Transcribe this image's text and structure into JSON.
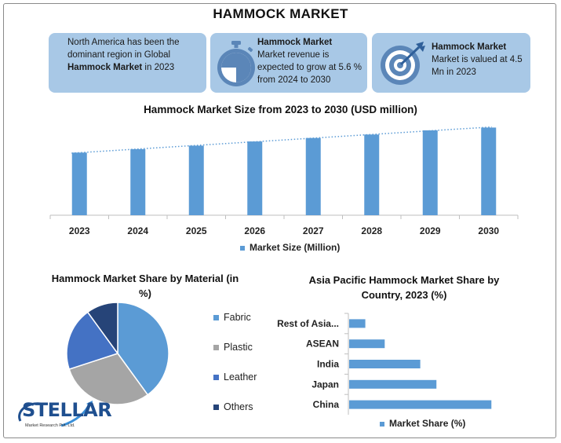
{
  "title": "HAMMOCK MARKET",
  "cards": [
    {
      "text_pre": "North America has been the dominant region in Global ",
      "text_bold": "Hammock Market",
      "text_post": " in 2023",
      "icon": "none"
    },
    {
      "heading": "Hammock Market",
      "text": "Market revenue is expected to grow at 5.6 % from 2024 to 2030",
      "icon": "stopwatch-icon"
    },
    {
      "heading": "Hammock Market",
      "text": "Market is valued at 4.5 Mn in 2023",
      "icon": "target-icon"
    }
  ],
  "colors": {
    "bar": "#5b9bd5",
    "card": "#a8c8e6",
    "fabric": "#5b9bd5",
    "plastic": "#a5a5a5",
    "leather": "#4472c4",
    "others": "#264478"
  },
  "logo": {
    "name": "STELLAR",
    "sub": "Market Research Pvt. Ltd."
  },
  "chart_data": [
    {
      "type": "bar",
      "title": "Hammock Market Size from 2023 to 2030 (USD million)",
      "categories": [
        "2023",
        "2024",
        "2025",
        "2026",
        "2027",
        "2028",
        "2029",
        "2030"
      ],
      "series": [
        {
          "name": "Market Size (Million)",
          "values": [
            4.5,
            4.75,
            5.0,
            5.3,
            5.55,
            5.8,
            6.1,
            6.3
          ]
        }
      ],
      "trendline": "dotted linear",
      "ylim": [
        0,
        7
      ],
      "grid": false,
      "legend": "bottom"
    },
    {
      "type": "pie",
      "title": "Hammock Market Share by Material (in %)",
      "categories": [
        "Fabric",
        "Plastic",
        "Leather",
        "Others"
      ],
      "values": [
        40,
        30,
        20,
        10
      ],
      "legend": "right"
    },
    {
      "type": "bar",
      "orientation": "horizontal",
      "title": "Asia Pacific Hammock Market Share by Country, 2023 (%)",
      "categories": [
        "Rest of Asia...",
        "ASEAN",
        "India",
        "Japan",
        "China"
      ],
      "series": [
        {
          "name": "Market Share (%)",
          "values": [
            5,
            11,
            22,
            27,
            44
          ]
        }
      ],
      "xlim": [
        0,
        50
      ],
      "legend": "bottom"
    }
  ]
}
